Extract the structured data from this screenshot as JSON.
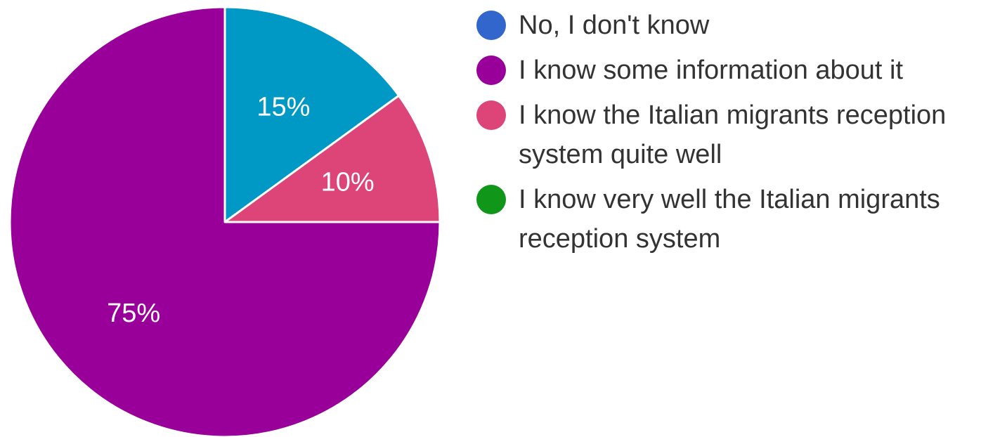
{
  "chart_data": {
    "type": "pie",
    "title": "",
    "legend_position": "right",
    "start_angle_deg": 0,
    "direction": "clockwise",
    "slices": [
      {
        "label": "No, I don't know",
        "value": 15,
        "display": "15%",
        "color": "#0099c6",
        "legend_color": "#3366cc",
        "name": "no-dont-know"
      },
      {
        "label": "I know the Italian migrants reception system quite well",
        "value": 10,
        "display": "10%",
        "color": "#dd4477",
        "legend_color": "#dd4477",
        "name": "know-quite-well"
      },
      {
        "label": "I know some information about it",
        "value": 75,
        "display": "75%",
        "color": "#990099",
        "legend_color": "#990099",
        "name": "know-some-info"
      }
    ],
    "legend": [
      {
        "label": "No, I don't know",
        "color": "#3366cc"
      },
      {
        "label": "I know some information about it",
        "color": "#990099"
      },
      {
        "label": "I know the Italian migrants reception system quite well",
        "color": "#dd4477"
      },
      {
        "label": "I know very well the Italian migrants reception system",
        "color": "#109618"
      }
    ]
  }
}
